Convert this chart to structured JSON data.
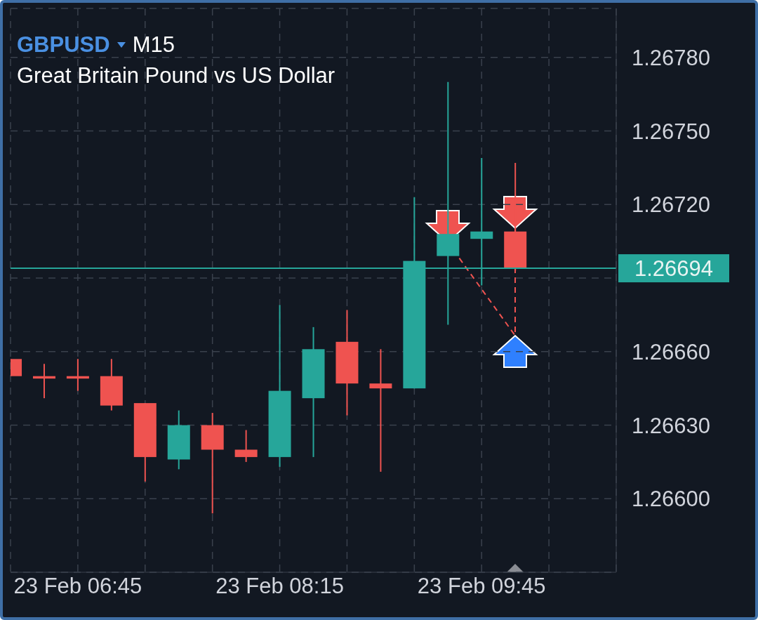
{
  "chart_data": {
    "type": "candlestick",
    "title": "GBPUSD",
    "subtitle": "Great Britain Pound vs US Dollar",
    "annotations": [
      "M15"
    ],
    "x": [
      "--02-23T06:15",
      "--02-23T06:30",
      "--02-23T06:45",
      "--02-23T07:00",
      "--02-23T07:15",
      "--02-23T07:30",
      "--02-23T07:45",
      "--02-23T08:00",
      "--02-23T08:15",
      "--02-23T08:30",
      "--02-23T08:45",
      "--02-23T09:00",
      "--02-23T09:15",
      "--02-23T09:30",
      "--02-23T09:45",
      "--02-23T10:00"
    ],
    "ohlc": [
      [
        1.26657,
        1.26657,
        1.2665,
        1.2665
      ],
      [
        1.2665,
        1.26655,
        1.26641,
        1.26649
      ],
      [
        1.2665,
        1.26657,
        1.26644,
        1.26649
      ],
      [
        1.2665,
        1.26657,
        1.26636,
        1.26638
      ],
      [
        1.26639,
        1.26639,
        1.26607,
        1.26617
      ],
      [
        1.26616,
        1.26636,
        1.26612,
        1.2663
      ],
      [
        1.2663,
        1.26635,
        1.26594,
        1.2662
      ],
      [
        1.2662,
        1.26628,
        1.26615,
        1.26617
      ],
      [
        1.26617,
        1.26679,
        1.26613,
        1.26644
      ],
      [
        1.26641,
        1.2667,
        1.26617,
        1.26661
      ],
      [
        1.26664,
        1.26677,
        1.26634,
        1.26647
      ],
      [
        1.26647,
        1.26661,
        1.26611,
        1.26645
      ],
      [
        1.26645,
        1.26723,
        1.26645,
        1.26697
      ],
      [
        1.26699,
        1.2677,
        1.26671,
        1.26708
      ],
      [
        1.26706,
        1.26739,
        1.26687,
        1.26709
      ],
      [
        1.26709,
        1.26737,
        1.26693,
        1.26694
      ]
    ],
    "colors": [
      "#ef5350",
      "#ef5350",
      "#ef5350",
      "#ef5350",
      "#ef5350",
      "#26a69a",
      "#ef5350",
      "#ef5350",
      "#26a69a",
      "#26a69a",
      "#ef5350",
      "#ef5350",
      "#26a69a",
      "#26a69a",
      "#26a69a",
      "#ef5350"
    ],
    "xlim": [
      "--02-23T06:15",
      "--02-23T10:45"
    ],
    "xticks": [
      {
        "value": "--02-23T06:45",
        "label": "23 Feb 06:45"
      },
      {
        "value": "--02-23T07:15",
        "label": null
      },
      {
        "value": "--02-23T07:45",
        "label": null
      },
      {
        "value": "--02-23T08:15",
        "label": "23 Feb 08:15"
      },
      {
        "value": "--02-23T08:45",
        "label": null
      },
      {
        "value": "--02-23T09:15",
        "label": null
      },
      {
        "value": "--02-23T09:45",
        "label": "23 Feb 09:45"
      },
      {
        "value": "--02-23T10:15",
        "label": null
      }
    ],
    "ylim": [
      1.2657,
      1.268
    ],
    "yticks": [
      {
        "value": 1.266,
        "label": "1.26600"
      },
      {
        "value": 1.2663,
        "label": "1.26630"
      },
      {
        "value": 1.2666,
        "label": "1.26660"
      },
      {
        "value": 1.2669,
        "label": null
      },
      {
        "value": 1.2672,
        "label": "1.26720"
      },
      {
        "value": 1.2675,
        "label": "1.26750"
      },
      {
        "value": 1.2678,
        "label": "1.26780"
      }
    ],
    "grid": true,
    "ref_lines": [
      {
        "axis": "y",
        "value": 1.26694,
        "label": "1.26694",
        "color": "#26a69a"
      }
    ]
  }
}
